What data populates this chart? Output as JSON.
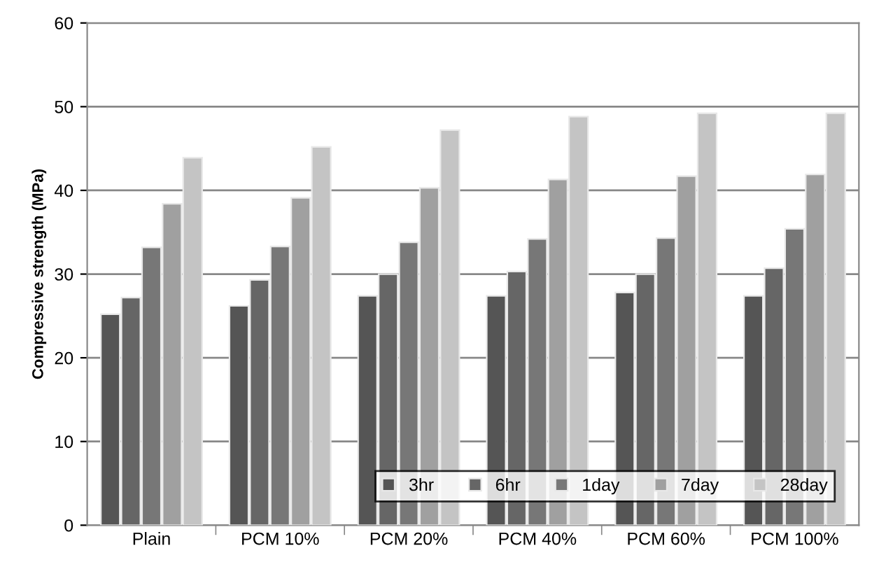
{
  "chart_data": {
    "type": "bar",
    "ylabel": "Compressive strength (MPa)",
    "categories": [
      "Plain",
      "PCM 10%",
      "PCM 20%",
      "PCM 40%",
      "PCM 60%",
      "PCM 100%"
    ],
    "series": [
      {
        "name": "3hr",
        "color": "#555555",
        "values": [
          25.2,
          26.2,
          27.4,
          27.4,
          27.8,
          27.4
        ]
      },
      {
        "name": "6hr",
        "color": "#666666",
        "values": [
          27.2,
          29.3,
          30.0,
          30.3,
          30.0,
          30.7
        ]
      },
      {
        "name": "1day",
        "color": "#777777",
        "values": [
          33.2,
          33.3,
          33.8,
          34.2,
          34.3,
          35.4
        ]
      },
      {
        "name": "7day",
        "color": "#a0a0a0",
        "values": [
          38.4,
          39.1,
          40.3,
          41.3,
          41.7,
          41.9
        ]
      },
      {
        "name": "28day",
        "color": "#c4c4c4",
        "values": [
          43.9,
          45.2,
          47.2,
          48.8,
          49.2,
          49.2
        ]
      }
    ],
    "ylim": [
      0,
      60
    ],
    "yticks": [
      0,
      10,
      20,
      30,
      40,
      50,
      60
    ],
    "grid": "y",
    "legend": "bottom right"
  }
}
